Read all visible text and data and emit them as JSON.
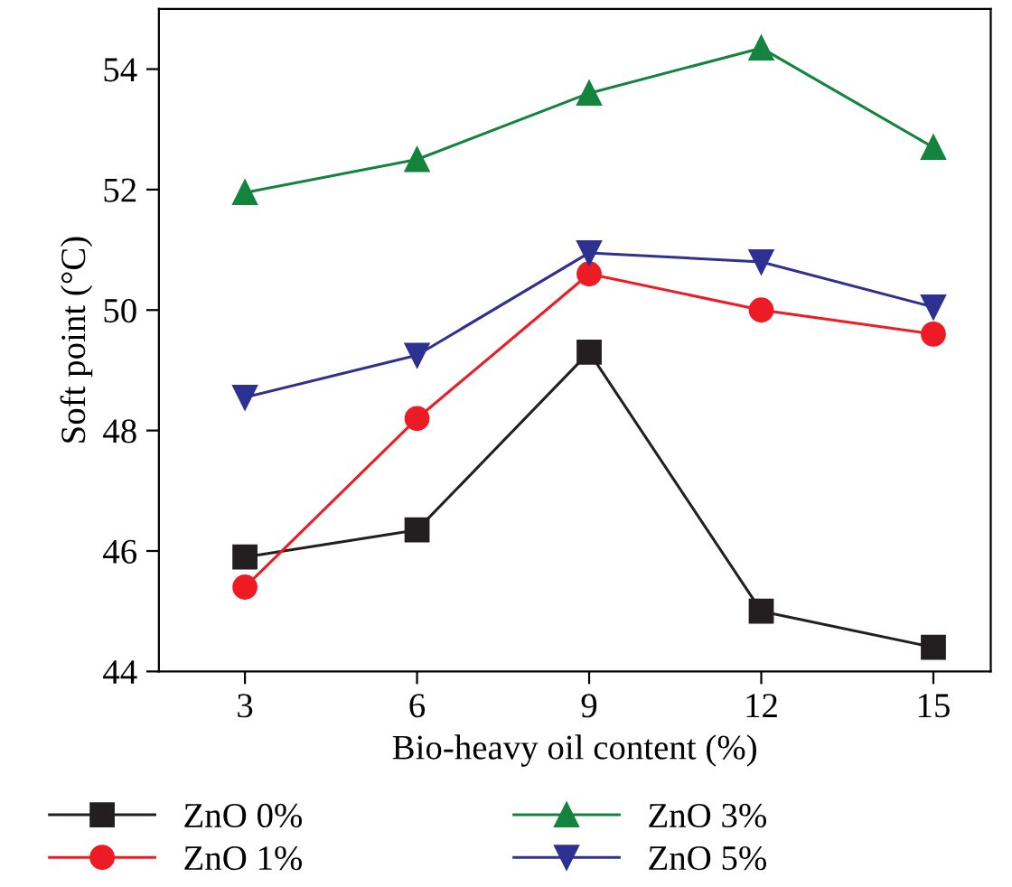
{
  "chart_data": {
    "type": "line",
    "xlabel": "Bio-heavy oil content (%)",
    "ylabel": "Soft point (°C)",
    "x": [
      3,
      6,
      9,
      12,
      15
    ],
    "series": [
      {
        "name": "ZnO 0%",
        "color": "#231f20",
        "marker": "square",
        "values": [
          45.9,
          46.35,
          49.3,
          45.0,
          44.4
        ]
      },
      {
        "name": "ZnO 1%",
        "color": "#ed1c24",
        "marker": "circle",
        "values": [
          45.4,
          48.2,
          50.6,
          50.0,
          49.6
        ]
      },
      {
        "name": "ZnO 3%",
        "color": "#13843d",
        "marker": "triangle",
        "values": [
          51.95,
          52.5,
          53.6,
          54.35,
          52.7
        ]
      },
      {
        "name": "ZnO 5%",
        "color": "#2e3192",
        "marker": "triangle_down",
        "values": [
          48.55,
          49.25,
          50.95,
          50.8,
          50.05
        ]
      }
    ],
    "xlim": [
      1.5,
      16
    ],
    "xticks": [
      3,
      6,
      9,
      12,
      15
    ],
    "ylim": [
      44,
      55
    ],
    "yticks": [
      44,
      46,
      48,
      50,
      52,
      54
    ],
    "grid": false,
    "legend": "bottom",
    "line_style": "solid"
  }
}
